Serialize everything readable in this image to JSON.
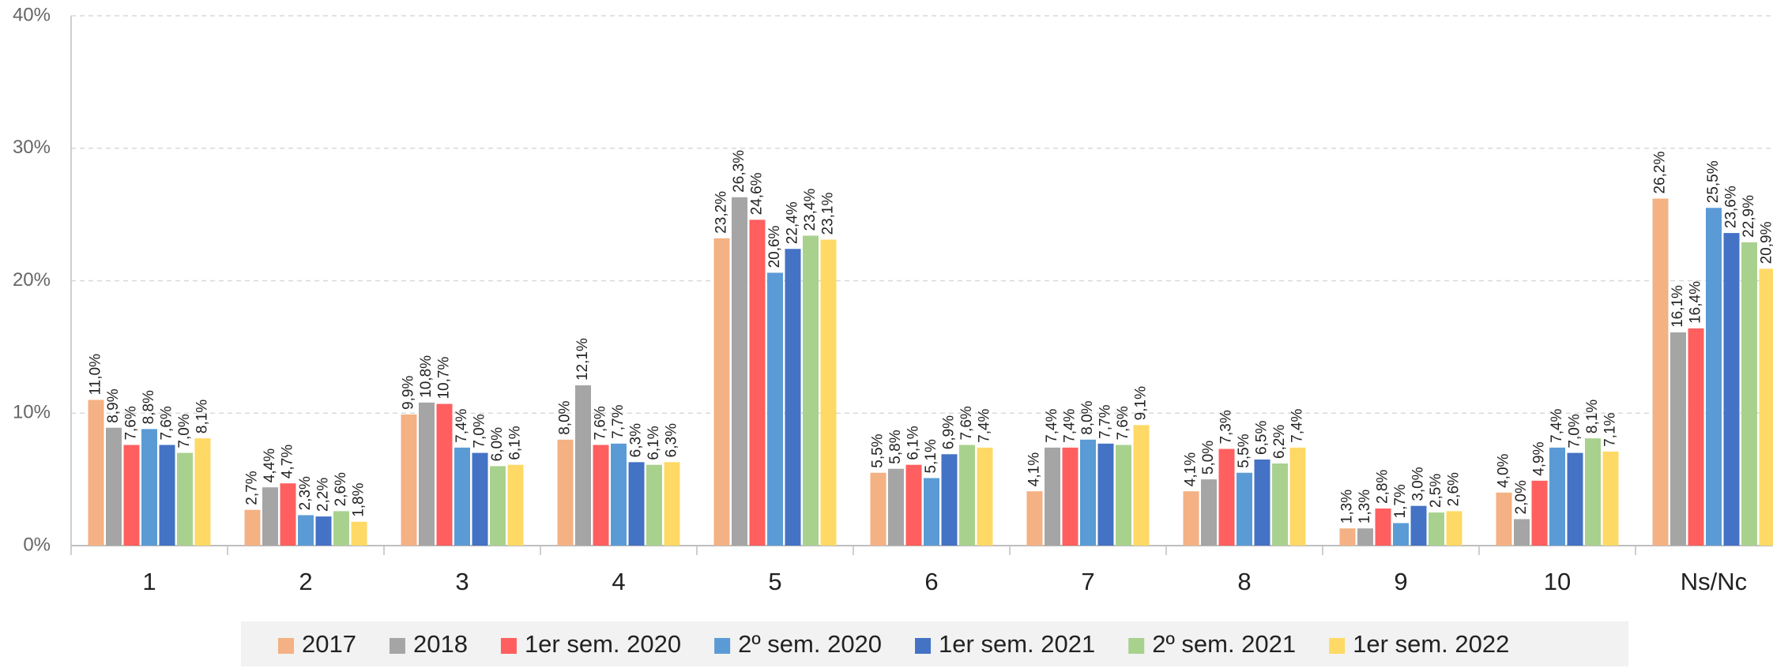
{
  "chart_data": {
    "type": "bar",
    "categories": [
      "1",
      "2",
      "3",
      "4",
      "5",
      "6",
      "7",
      "8",
      "9",
      "10",
      "Ns/Nc"
    ],
    "series": [
      {
        "name": "2017",
        "color": "#f4b183",
        "values": [
          11.0,
          2.7,
          9.9,
          8.0,
          23.2,
          5.5,
          4.1,
          4.1,
          1.3,
          4.0,
          26.2
        ],
        "value_labels": [
          "11,0%",
          "2,7%",
          "9,9%",
          "8,0%",
          "23,2%",
          "5,5%",
          "4,1%",
          "4,1%",
          "1,3%",
          "4,0%",
          "26,2%"
        ]
      },
      {
        "name": "2018",
        "color": "#a5a5a5",
        "values": [
          8.9,
          4.4,
          10.8,
          12.1,
          26.3,
          5.8,
          7.4,
          5.0,
          1.3,
          2.0,
          16.1
        ],
        "value_labels": [
          "8,9%",
          "4,4%",
          "10,8%",
          "12,1%",
          "26,3%",
          "5,8%",
          "7,4%",
          "5,0%",
          "1,3%",
          "2,0%",
          "16,1%"
        ]
      },
      {
        "name": "1er sem. 2020",
        "color": "#ff5f5f",
        "values": [
          7.6,
          4.7,
          10.7,
          7.6,
          24.6,
          6.1,
          7.4,
          7.3,
          2.8,
          4.9,
          16.4
        ],
        "value_labels": [
          "7,6%",
          "4,7%",
          "10,7%",
          "7,6%",
          "24,6%",
          "6,1%",
          "7,4%",
          "7,3%",
          "2,8%",
          "4,9%",
          "16,4%"
        ]
      },
      {
        "name": "2º sem. 2020",
        "color": "#5b9bd5",
        "values": [
          8.8,
          2.3,
          7.4,
          7.7,
          20.6,
          5.1,
          8.0,
          5.5,
          1.7,
          7.4,
          25.5
        ],
        "value_labels": [
          "8,8%",
          "2,3%",
          "7,4%",
          "7,7%",
          "20,6%",
          "5,1%",
          "8,0%",
          "5,5%",
          "1,7%",
          "7,4%",
          "25,5%"
        ]
      },
      {
        "name": "1er sem. 2021",
        "color": "#4472c4",
        "values": [
          7.6,
          2.2,
          7.0,
          6.3,
          22.4,
          6.9,
          7.7,
          6.5,
          3.0,
          7.0,
          23.6
        ],
        "value_labels": [
          "7,6%",
          "2,2%",
          "7,0%",
          "6,3%",
          "22,4%",
          "6,9%",
          "7,7%",
          "6,5%",
          "3,0%",
          "7,0%",
          "23,6%"
        ]
      },
      {
        "name": "2º sem. 2021",
        "color": "#a9d18e",
        "values": [
          7.0,
          2.6,
          6.0,
          6.1,
          23.4,
          7.6,
          7.6,
          6.2,
          2.5,
          8.1,
          22.9
        ],
        "value_labels": [
          "7,0%",
          "2,6%",
          "6,0%",
          "6,1%",
          "23,4%",
          "7,6%",
          "7,6%",
          "6,2%",
          "2,5%",
          "8,1%",
          "22,9%"
        ]
      },
      {
        "name": "1er sem. 2022",
        "color": "#ffd966",
        "values": [
          8.1,
          1.8,
          6.1,
          6.3,
          23.1,
          7.4,
          9.1,
          7.4,
          2.6,
          7.1,
          20.9
        ],
        "value_labels": [
          "8,1%",
          "1,8%",
          "6,1%",
          "6,3%",
          "23,1%",
          "7,4%",
          "9,1%",
          "7,4%",
          "2,6%",
          "7,1%",
          "20,9%"
        ]
      }
    ],
    "ylim": [
      0,
      40
    ],
    "yticks": [
      {
        "value": 0,
        "label": "0%"
      },
      {
        "value": 10,
        "label": "10%"
      },
      {
        "value": 20,
        "label": "20%"
      },
      {
        "value": 30,
        "label": "30%"
      },
      {
        "value": 40,
        "label": "40%"
      }
    ],
    "grid": true,
    "legend": "bottom"
  }
}
